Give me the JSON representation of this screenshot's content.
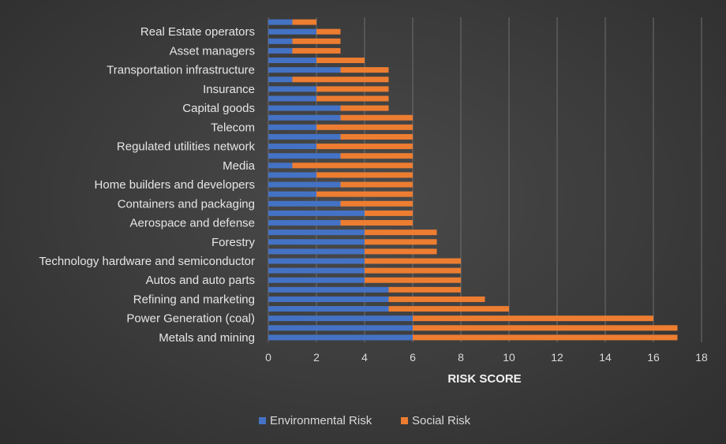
{
  "chart_data": {
    "type": "bar",
    "orientation": "horizontal",
    "stacked": true,
    "xlabel": "RISK SCORE",
    "xlim": [
      0,
      18
    ],
    "xticks": [
      0,
      2,
      4,
      6,
      8,
      10,
      12,
      14,
      16,
      18
    ],
    "grid": true,
    "legend_position": "bottom",
    "categories": [
      "Metals and mining",
      "",
      "Power Generation (coal)",
      "",
      "Refining and marketing",
      "",
      "Autos and auto parts",
      "",
      "Technology hardware and semiconductor",
      "",
      "Forestry",
      "",
      "Aerospace and defense",
      "",
      "Containers and packaging",
      "",
      "Home builders and developers",
      "",
      "Media",
      "",
      "Regulated utilities network",
      "",
      "Telecom",
      "",
      "Capital goods",
      "",
      "Insurance",
      "",
      "Transportation infrastructure",
      "",
      "Asset managers",
      "",
      "Real Estate operators",
      ""
    ],
    "series": [
      {
        "name": "Environmental Risk",
        "color": "#4472C4",
        "values": [
          6,
          6,
          6,
          5,
          5,
          5,
          4,
          4,
          4,
          4,
          4,
          4,
          3,
          4,
          3,
          2,
          3,
          2,
          1,
          3,
          2,
          3,
          2,
          3,
          3,
          2,
          2,
          1,
          3,
          2,
          1,
          1,
          2,
          1
        ]
      },
      {
        "name": "Social Risk",
        "color": "#ED7D31",
        "values": [
          11,
          11,
          10,
          5,
          4,
          3,
          4,
          4,
          4,
          3,
          3,
          3,
          3,
          2,
          3,
          4,
          3,
          4,
          5,
          3,
          4,
          3,
          4,
          3,
          2,
          3,
          3,
          4,
          2,
          2,
          2,
          2,
          1,
          1
        ]
      }
    ]
  }
}
